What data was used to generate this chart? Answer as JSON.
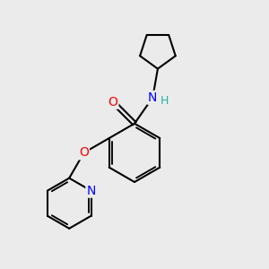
{
  "background_color": "#EBEBEB",
  "bond_color": "#000000",
  "bond_width": 1.5,
  "atom_colors": {
    "O": "#FF0000",
    "N_amide": "#0000FF",
    "N_pyridine": "#0000FF",
    "H": "#20B2AA",
    "C": "#000000"
  },
  "figsize": [
    3.0,
    3.0
  ],
  "dpi": 100
}
